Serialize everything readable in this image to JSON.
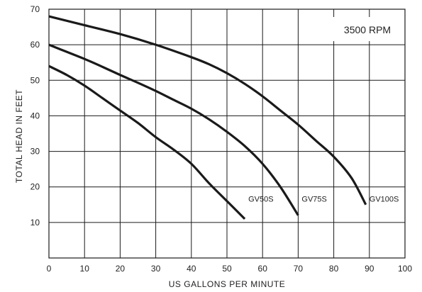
{
  "chart_data": {
    "type": "line",
    "title": "",
    "annotation": "3500 RPM",
    "xlabel": "US GALLONS PER MINUTE",
    "ylabel": "TOTAL HEAD IN FEET",
    "xlim": [
      0,
      100
    ],
    "ylim": [
      0,
      70
    ],
    "x_ticks": [
      "0",
      "10",
      "20",
      "30",
      "40",
      "50",
      "60",
      "70",
      "80",
      "90",
      "100"
    ],
    "y_ticks": [
      "10",
      "20",
      "30",
      "40",
      "50",
      "60",
      "70"
    ],
    "grid": true,
    "line_color": "#1a1a1a",
    "series": [
      {
        "name": "GV50S",
        "x": [
          0,
          5,
          10,
          15,
          20,
          25,
          30,
          35,
          40,
          45,
          50,
          55
        ],
        "y": [
          54,
          51.5,
          48.5,
          45,
          41.5,
          38,
          34,
          30.5,
          26.5,
          21,
          16,
          11
        ]
      },
      {
        "name": "GV75S",
        "x": [
          0,
          5,
          10,
          15,
          20,
          25,
          30,
          35,
          40,
          45,
          50,
          55,
          60,
          65,
          70
        ],
        "y": [
          60,
          58,
          56,
          53.8,
          51.5,
          49.3,
          47,
          44.5,
          42,
          39,
          35.5,
          31.5,
          26.5,
          20,
          12
        ]
      },
      {
        "name": "GV100S",
        "x": [
          0,
          10,
          20,
          30,
          40,
          45,
          50,
          55,
          60,
          65,
          70,
          75,
          80,
          85,
          89
        ],
        "y": [
          68,
          65.5,
          63,
          60,
          56.5,
          54.5,
          52,
          49,
          45.5,
          41.5,
          37.5,
          33,
          28.5,
          22.5,
          15
        ]
      }
    ]
  }
}
